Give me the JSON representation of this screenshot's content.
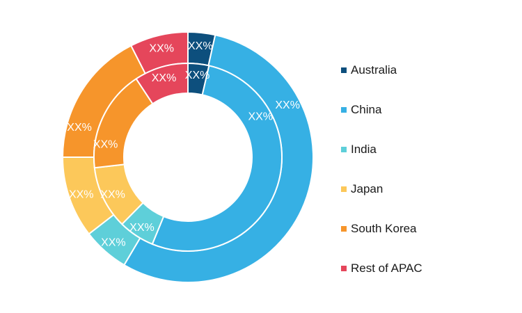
{
  "chart_data": {
    "type": "donut",
    "legend_placement": "right",
    "categories": [
      "Australia",
      "China",
      "India",
      "Japan",
      "South Korea",
      "Rest of APAC"
    ],
    "colors": [
      "#0d4f7d",
      "#36b0e4",
      "#5ecfd9",
      "#fcc85a",
      "#f6952b",
      "#e5465b"
    ],
    "series": [
      {
        "ring": "outer",
        "values": [
          3.5,
          55.0,
          6.0,
          10.5,
          17.5,
          7.5
        ],
        "labels": [
          "XX%",
          "XX%",
          "XX%",
          "XX%",
          "XX%",
          "XX%"
        ]
      },
      {
        "ring": "inner",
        "values": [
          3.5,
          51.0,
          6.0,
          10.5,
          17.0,
          9.0
        ],
        "labels": [
          "XX%",
          "XX%",
          "XX%",
          "XX%",
          "XX%",
          "XX%"
        ]
      }
    ]
  }
}
